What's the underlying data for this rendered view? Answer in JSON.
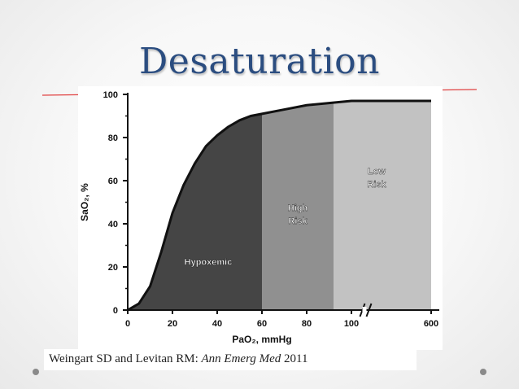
{
  "slide": {
    "title": "Desaturation",
    "citation_authors": "Weingart SD and Levitan RM:",
    "citation_journal": "Ann Emerg Med",
    "citation_year": "2011",
    "title_color": "#2b4d80",
    "rule_color": "#e04040"
  },
  "chart_data": {
    "type": "area",
    "xlabel": "PaO₂, mmHg",
    "ylabel": "SaO₂, %",
    "x_ticks": [
      "0",
      "20",
      "40",
      "60",
      "80",
      "100",
      "600"
    ],
    "y_ticks": [
      "0",
      "20",
      "40",
      "60",
      "80",
      "100"
    ],
    "ylim": [
      0,
      100
    ],
    "x_axis_note": "broken axis between 100 and 600",
    "series": [
      {
        "x": [
          0,
          5,
          10,
          15,
          20,
          25,
          30,
          35,
          40,
          45,
          50,
          55,
          60,
          70,
          80,
          90,
          100,
          600
        ],
        "y": [
          0,
          3,
          11,
          27,
          45,
          58,
          68,
          76,
          81,
          85,
          88,
          90,
          91,
          93,
          95,
          96,
          97,
          97
        ]
      }
    ],
    "regions": [
      {
        "label": "Hypoxemic",
        "x_range": [
          0,
          60
        ],
        "color": "#454545"
      },
      {
        "label_line1": "High",
        "label_line2": "Risk",
        "x_range": [
          60,
          92
        ],
        "color": "#909090"
      },
      {
        "label_line1": "Low",
        "label_line2": "Risk",
        "x_range": [
          92,
          600
        ],
        "color": "#c2c2c2"
      }
    ]
  }
}
